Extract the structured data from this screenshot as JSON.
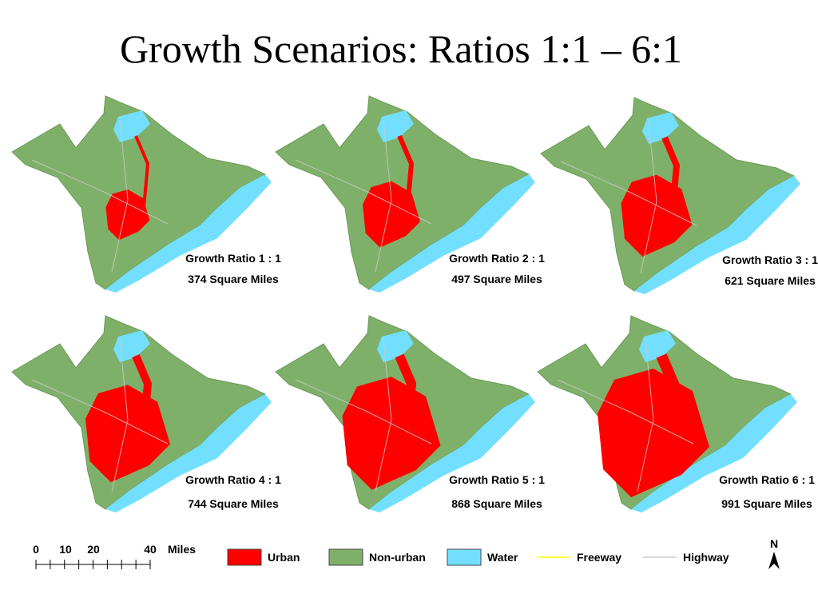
{
  "title": "Growth Scenarios: Ratios 1:1 – 6:1",
  "panels": [
    {
      "label": "Growth Ratio 1 : 1",
      "area": "374 Square Miles"
    },
    {
      "label": "Growth Ratio 2 : 1",
      "area": "497 Square Miles"
    },
    {
      "label": "Growth Ratio 3 : 1",
      "area": "621 Square Miles"
    },
    {
      "label": "Growth Ratio 4 : 1",
      "area": "744 Square Miles"
    },
    {
      "label": "Growth Ratio 5 : 1",
      "area": "868 Square Miles"
    },
    {
      "label": "Growth Ratio 6 : 1",
      "area": "991 Square Miles"
    }
  ],
  "scale": {
    "ticks": [
      "0",
      "10",
      "20",
      "40"
    ],
    "unit": "Miles"
  },
  "legend": [
    {
      "name": "Urban",
      "color": "#ff0000",
      "kind": "box"
    },
    {
      "name": "Non-urban",
      "color": "#7fb069",
      "kind": "box"
    },
    {
      "name": "Water",
      "color": "#73dfff",
      "kind": "box"
    },
    {
      "name": "Freeway",
      "color": "#ffff00",
      "kind": "line"
    },
    {
      "name": "Highway",
      "color": "#cccccc",
      "kind": "line"
    }
  ],
  "north": "N"
}
